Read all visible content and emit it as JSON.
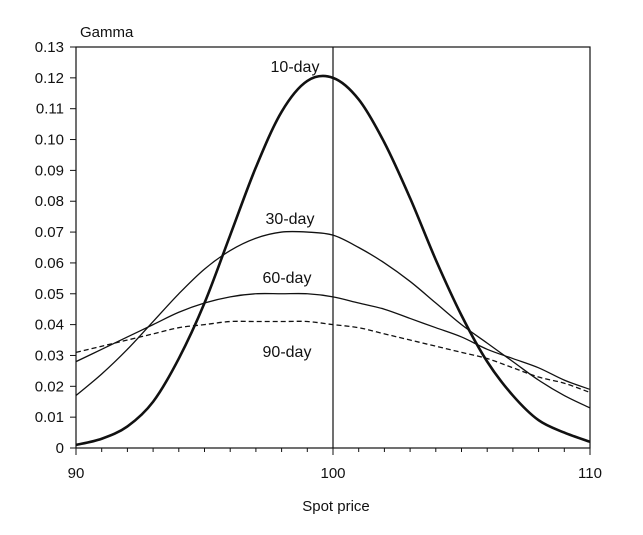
{
  "chart_data": {
    "type": "line",
    "title": "",
    "ylabel": "Gamma",
    "xlabel": "Spot price",
    "xlim": [
      90,
      110
    ],
    "ylim": [
      0,
      0.13
    ],
    "x_ticks": [
      "90",
      "100",
      "110"
    ],
    "y_ticks": [
      "0",
      "0.01",
      "0.02",
      "0.03",
      "0.04",
      "0.05",
      "0.06",
      "0.07",
      "0.08",
      "0.09",
      "0.10",
      "0.11",
      "0.12",
      "0.13"
    ],
    "reference_line_x": 100,
    "grid": false,
    "legend": "none",
    "x": [
      90,
      91,
      92,
      93,
      94,
      95,
      96,
      97,
      98,
      99,
      100,
      101,
      102,
      103,
      104,
      105,
      106,
      107,
      108,
      109,
      110
    ],
    "series": [
      {
        "name": "10-day",
        "values": [
          0.001,
          0.003,
          0.007,
          0.015,
          0.029,
          0.047,
          0.069,
          0.091,
          0.109,
          0.119,
          0.12,
          0.113,
          0.099,
          0.081,
          0.061,
          0.043,
          0.028,
          0.017,
          0.009,
          0.005,
          0.002
        ]
      },
      {
        "name": "30-day",
        "values": [
          0.017,
          0.024,
          0.032,
          0.041,
          0.05,
          0.058,
          0.064,
          0.068,
          0.07,
          0.07,
          0.069,
          0.065,
          0.06,
          0.054,
          0.047,
          0.04,
          0.034,
          0.028,
          0.022,
          0.017,
          0.013
        ]
      },
      {
        "name": "60-day",
        "values": [
          0.028,
          0.032,
          0.036,
          0.04,
          0.044,
          0.047,
          0.049,
          0.05,
          0.05,
          0.05,
          0.049,
          0.047,
          0.045,
          0.042,
          0.039,
          0.036,
          0.032,
          0.029,
          0.026,
          0.022,
          0.019
        ]
      },
      {
        "name": "90-day",
        "values": [
          0.031,
          0.033,
          0.035,
          0.037,
          0.039,
          0.04,
          0.041,
          0.041,
          0.041,
          0.041,
          0.04,
          0.039,
          0.037,
          0.035,
          0.033,
          0.031,
          0.029,
          0.026,
          0.023,
          0.021,
          0.018
        ],
        "dashed": true
      }
    ]
  }
}
